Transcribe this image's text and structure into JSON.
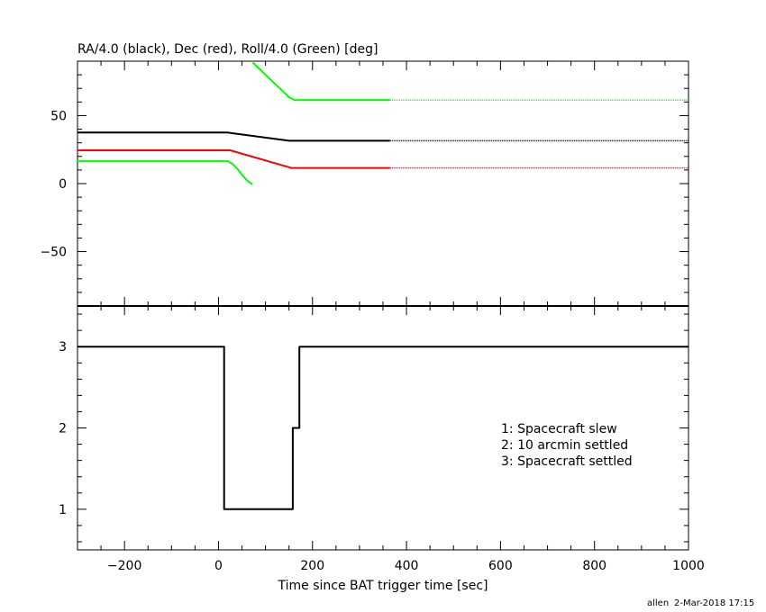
{
  "chart_data": [
    {
      "type": "line",
      "title": "RA/4.0 (black), Dec (red), Roll/4.0 (Green) [deg]",
      "xlim": [
        -300,
        1000
      ],
      "ylim": [
        -90,
        90
      ],
      "y_ticks": [
        -50,
        0,
        50
      ],
      "y_tick_labels": [
        "−50",
        "0",
        "50"
      ],
      "grid": false,
      "series": [
        {
          "color": "#000000",
          "x": [
            -300,
            20,
            150,
            365
          ],
          "y": [
            37.5,
            37.5,
            31.5,
            31.5
          ],
          "dotted_x": [
            365,
            1000
          ],
          "dotted_y": [
            31.5,
            31.5
          ]
        },
        {
          "color": "#ff0000",
          "x": [
            -300,
            25,
            155,
            365
          ],
          "y": [
            24.5,
            24.5,
            11.5,
            11.5
          ],
          "dotted_x": [
            365,
            1000
          ],
          "dotted_y": [
            11.5,
            11.5
          ]
        },
        {
          "color": "#00ff00",
          "x": [
            -300,
            20,
            30,
            40,
            50,
            60,
            72
          ],
          "y": [
            16.5,
            16.5,
            14.5,
            11,
            6.5,
            2.5,
            -0.5
          ],
          "dotted_x": [],
          "dotted_y": []
        },
        {
          "color": "#00ff00",
          "x": [
            73,
            150,
            162,
            365
          ],
          "y": [
            89,
            63.5,
            61.5,
            61.5
          ],
          "dotted_x": [
            365,
            1000
          ],
          "dotted_y": [
            61.5,
            61.5
          ]
        }
      ]
    },
    {
      "type": "line",
      "step": true,
      "xlabel": "Time since BAT trigger time [sec]",
      "xlim": [
        -300,
        1000
      ],
      "ylim": [
        0.5,
        3.5
      ],
      "x_ticks": [
        -200,
        0,
        200,
        400,
        600,
        800,
        1000
      ],
      "x_tick_labels": [
        "−200",
        "0",
        "200",
        "400",
        "600",
        "800",
        "1000"
      ],
      "y_ticks": [
        1,
        2,
        3
      ],
      "y_tick_labels": [
        "1",
        "2",
        "3"
      ],
      "grid": false,
      "series": [
        {
          "color": "#000000",
          "x": [
            -300,
            12,
            12,
            158,
            158,
            172,
            172,
            1000
          ],
          "y": [
            3,
            3,
            1,
            1,
            2,
            2,
            3,
            3
          ]
        }
      ],
      "annotations": [
        "1: Spacecraft slew",
        "2: 10 arcmin settled",
        "3: Spacecraft settled"
      ]
    }
  ],
  "footer": {
    "user": "allen",
    "timestamp": "2-Mar-2018 17:15"
  }
}
